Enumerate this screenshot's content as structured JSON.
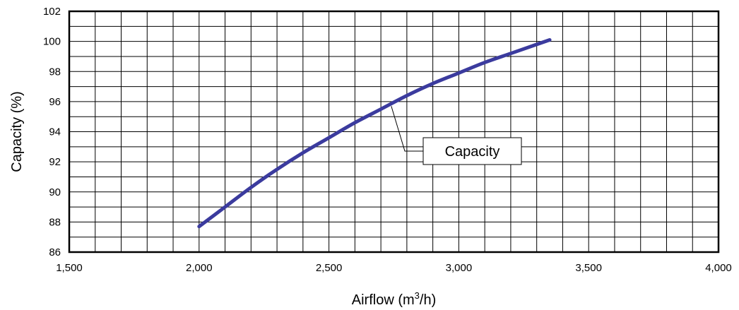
{
  "chart_data": {
    "type": "line",
    "title": "",
    "xlabel": "Airflow (m",
    "xlabel_sup": "3",
    "xlabel_end": "/h)",
    "ylabel": "Capacity (%)",
    "xlim": [
      1500,
      4000
    ],
    "ylim": [
      86,
      102
    ],
    "x_ticks": [
      "1,500",
      "2,000",
      "2,500",
      "3,000",
      "3,500",
      "4,000"
    ],
    "y_ticks": [
      "86",
      "88",
      "90",
      "92",
      "94",
      "96",
      "98",
      "100",
      "102"
    ],
    "grid": true,
    "legend_label": "Capacity",
    "series": [
      {
        "name": "Capacity",
        "color": "#3b3b9e",
        "x": [
          2000,
          2100,
          2200,
          2300,
          2400,
          2500,
          2600,
          2700,
          2800,
          2900,
          3000,
          3100,
          3200,
          3300,
          3350
        ],
        "y": [
          87.7,
          89.0,
          90.3,
          91.5,
          92.6,
          93.6,
          94.6,
          95.5,
          96.4,
          97.2,
          97.9,
          98.6,
          99.2,
          99.8,
          100.1
        ]
      }
    ]
  }
}
